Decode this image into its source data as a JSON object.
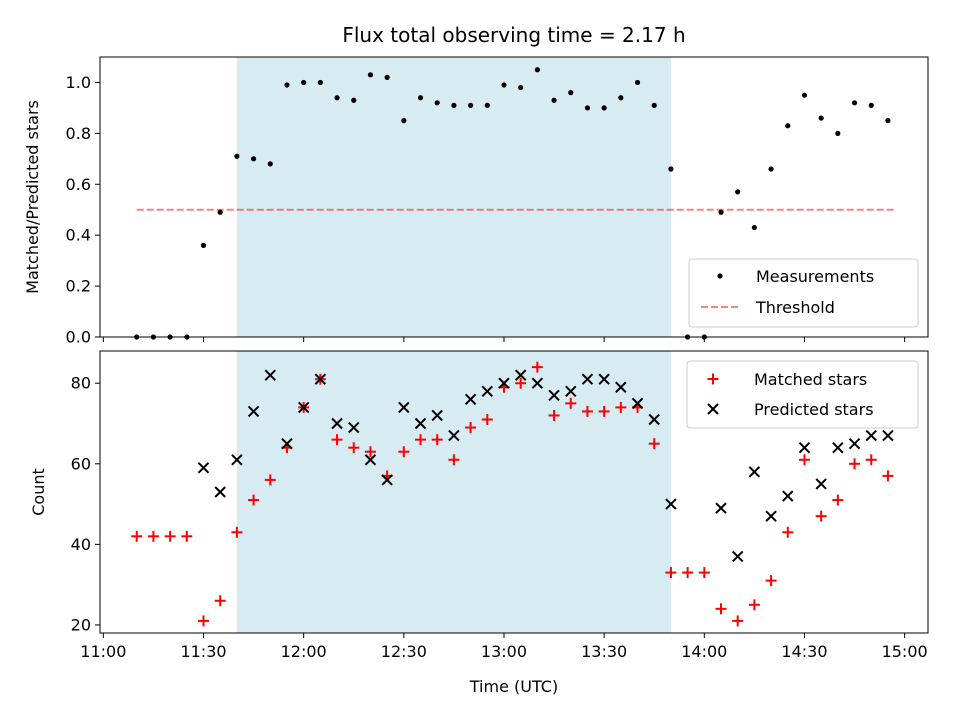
{
  "chart_data": {
    "type": "scatter",
    "title": "Flux total observing time = 2.17 h",
    "x_unit": "minutes",
    "xlabel": "Time (UTC)",
    "x_tick_labels": [
      "11:00",
      "11:30",
      "12:00",
      "12:30",
      "13:00",
      "13:30",
      "14:00",
      "14:30",
      "15:00"
    ],
    "x_ticks": [
      660,
      690,
      720,
      750,
      780,
      810,
      840,
      870,
      900
    ],
    "xlim": [
      659,
      907
    ],
    "shaded_interval": {
      "start": 700,
      "end": 830,
      "color": "#add8e6"
    },
    "top": {
      "ylabel": "Matched/Predicted stars",
      "ylim": [
        0,
        1.1
      ],
      "y_ticks": [
        0.0,
        0.2,
        0.4,
        0.6,
        0.8,
        1.0
      ],
      "y_tick_labels": [
        "0.0",
        "0.2",
        "0.4",
        "0.6",
        "0.8",
        "1.0"
      ],
      "legend": [
        "Measurements",
        "Threshold"
      ],
      "threshold": {
        "name": "Threshold",
        "value": 0.5,
        "x_start": 670,
        "x_end": 897,
        "color": "#ff0000"
      },
      "measurements": {
        "name": "Measurements",
        "x": [
          670,
          675,
          680,
          685,
          690,
          695,
          700,
          705,
          710,
          715,
          720,
          725,
          730,
          735,
          740,
          745,
          750,
          755,
          760,
          765,
          770,
          775,
          780,
          785,
          790,
          795,
          800,
          805,
          810,
          815,
          820,
          825,
          830,
          835,
          840,
          845,
          850,
          855,
          860,
          865,
          870,
          875,
          880,
          885,
          890,
          895
        ],
        "y": [
          0,
          0,
          0,
          0,
          0.36,
          0.49,
          0.71,
          0.7,
          0.68,
          0.99,
          1.0,
          1.0,
          0.94,
          0.93,
          1.03,
          1.02,
          0.85,
          0.94,
          0.92,
          0.91,
          0.91,
          0.91,
          0.99,
          0.98,
          1.05,
          0.93,
          0.96,
          0.9,
          0.9,
          0.94,
          1.0,
          0.91,
          0.66,
          0,
          0,
          0.49,
          0.57,
          0.43,
          0.66,
          0.83,
          0.95,
          0.86,
          0.8,
          0.92,
          0.91,
          0.85
        ]
      }
    },
    "bottom": {
      "ylabel": "Count",
      "ylim": [
        18,
        88
      ],
      "y_ticks": [
        20,
        40,
        60,
        80
      ],
      "y_tick_labels": [
        "20",
        "40",
        "60",
        "80"
      ],
      "legend": [
        "Matched stars",
        "Predicted stars"
      ],
      "series": [
        {
          "name": "Matched stars",
          "marker": "plus",
          "color": "#ff0000",
          "x": [
            670,
            675,
            680,
            685,
            690,
            695,
            700,
            705,
            710,
            715,
            720,
            725,
            730,
            735,
            740,
            745,
            750,
            755,
            760,
            765,
            770,
            775,
            780,
            785,
            790,
            795,
            800,
            805,
            810,
            815,
            820,
            825,
            830,
            835,
            840,
            845,
            850,
            855,
            860,
            865,
            870,
            875,
            880,
            885,
            890,
            895
          ],
          "y": [
            42,
            42,
            42,
            42,
            21,
            26,
            43,
            51,
            56,
            64,
            74,
            81,
            66,
            64,
            63,
            57,
            63,
            66,
            66,
            61,
            69,
            71,
            79,
            80,
            84,
            72,
            75,
            73,
            73,
            74,
            74,
            65,
            33,
            33,
            33,
            24,
            21,
            25,
            31,
            43,
            61,
            47,
            51,
            60,
            61,
            57
          ]
        },
        {
          "name": "Predicted stars",
          "marker": "x",
          "color": "#000000",
          "x": [
            690,
            695,
            700,
            705,
            710,
            715,
            720,
            725,
            730,
            735,
            740,
            745,
            750,
            755,
            760,
            765,
            770,
            775,
            780,
            785,
            790,
            795,
            800,
            805,
            810,
            815,
            820,
            825,
            830,
            845,
            850,
            855,
            860,
            865,
            870,
            875,
            880,
            885,
            890,
            895
          ],
          "y": [
            59,
            53,
            61,
            73,
            82,
            65,
            74,
            81,
            70,
            69,
            61,
            56,
            74,
            70,
            72,
            67,
            76,
            78,
            80,
            82,
            80,
            77,
            78,
            81,
            81,
            79,
            75,
            71,
            50,
            49,
            37,
            58,
            47,
            52,
            64,
            55,
            64,
            65,
            67,
            67
          ]
        }
      ]
    }
  }
}
